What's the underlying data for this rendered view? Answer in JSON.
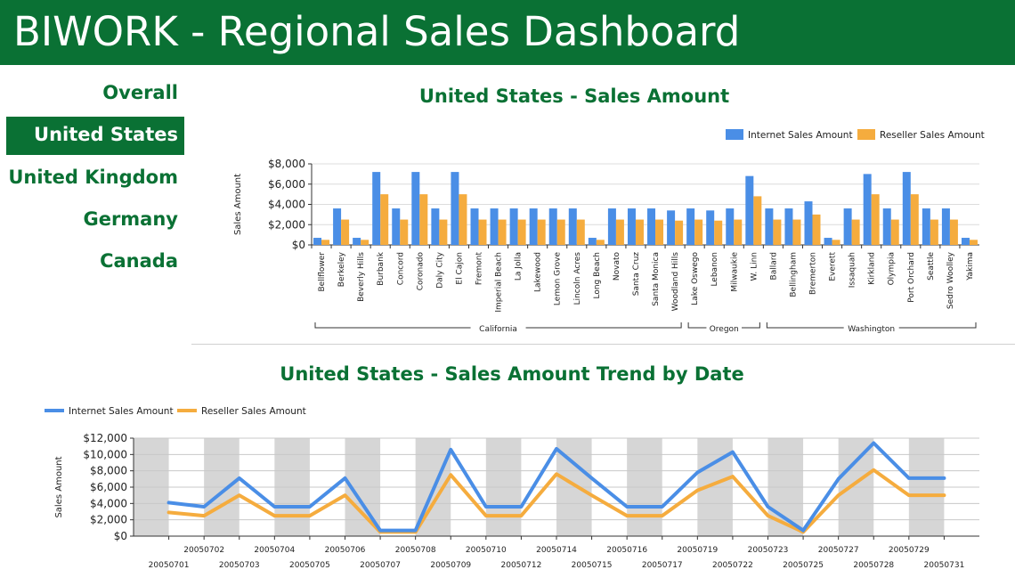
{
  "app": {
    "title": "BIWORK - Regional Sales Dashboard"
  },
  "colors": {
    "brand": "#0a7134",
    "internet": "#4a8ee6",
    "reseller": "#f5ac3e",
    "band": "#d6d6d6"
  },
  "sidebar": {
    "items": [
      {
        "label": "Overall",
        "active": false
      },
      {
        "label": "United States",
        "active": true
      },
      {
        "label": "United Kingdom",
        "active": false
      },
      {
        "label": "Germany",
        "active": false
      },
      {
        "label": "Canada",
        "active": false
      }
    ]
  },
  "chart_data": [
    {
      "type": "bar",
      "title": "United States - Sales Amount",
      "ylabel": "Sales Amount",
      "xlabel": "",
      "ylim": [
        0,
        8000
      ],
      "yticks": [
        "$0",
        "$2,000",
        "$4,000",
        "$6,000",
        "$8,000"
      ],
      "grid": true,
      "legend_position": "top-right",
      "categories": [
        "Bellflower",
        "Berkeley",
        "Beverly Hills",
        "Burbank",
        "Concord",
        "Coronado",
        "Daly City",
        "El Cajon",
        "Fremont",
        "Imperial Beach",
        "La Jolla",
        "Lakewood",
        "Lemon Grove",
        "Lincoln Acres",
        "Long Beach",
        "Novato",
        "Santa Cruz",
        "Santa Monica",
        "Woodland Hills",
        "Lake Oswego",
        "Lebanon",
        "Milwaukie",
        "W. Linn",
        "Ballard",
        "Bellingham",
        "Bremerton",
        "Everett",
        "Issaquah",
        "Kirkland",
        "Olympia",
        "Port Orchard",
        "Seattle",
        "Sedro Woolley",
        "Yakima"
      ],
      "groups": [
        {
          "label": "California",
          "start": 0,
          "end": 18
        },
        {
          "label": "Oregon",
          "start": 19,
          "end": 22
        },
        {
          "label": "Washington",
          "start": 23,
          "end": 33
        }
      ],
      "series": [
        {
          "name": "Internet Sales Amount",
          "values": [
            700,
            3600,
            700,
            7200,
            3600,
            7200,
            3600,
            7200,
            3600,
            3600,
            3600,
            3600,
            3600,
            3600,
            700,
            3600,
            3600,
            3600,
            3400,
            3600,
            3400,
            3600,
            6800,
            3600,
            3600,
            4300,
            700,
            3600,
            7000,
            3600,
            7200,
            3600,
            3600,
            700
          ]
        },
        {
          "name": "Reseller Sales Amount",
          "values": [
            500,
            2500,
            500,
            5000,
            2500,
            5000,
            2500,
            5000,
            2500,
            2500,
            2500,
            2500,
            2500,
            2500,
            500,
            2500,
            2500,
            2500,
            2400,
            2500,
            2400,
            2500,
            4800,
            2500,
            2500,
            3000,
            500,
            2500,
            5000,
            2500,
            5000,
            2500,
            2500,
            500
          ]
        }
      ]
    },
    {
      "type": "line",
      "title": "United States - Sales Amount Trend by Date",
      "ylabel": "Sales Amount",
      "xlabel": "",
      "ylim": [
        0,
        12000
      ],
      "yticks": [
        "$0",
        "$2,000",
        "$4,000",
        "$6,000",
        "$8,000",
        "$10,000",
        "$12,000"
      ],
      "legend_position": "top-left",
      "x": [
        "20050701",
        "20050702",
        "20050703",
        "20050704",
        "20050705",
        "20050706",
        "20050707",
        "20050708",
        "20050709",
        "20050710",
        "20050712",
        "20050714",
        "20050715",
        "20050716",
        "20050717",
        "20050719",
        "20050722",
        "20050723",
        "20050725",
        "20050727",
        "20050728",
        "20050729",
        "20050731"
      ],
      "series": [
        {
          "name": "Internet Sales Amount",
          "values": [
            4100,
            3600,
            7100,
            3600,
            3600,
            7100,
            700,
            700,
            10600,
            3600,
            3600,
            10700,
            7100,
            3600,
            3600,
            7800,
            10300,
            3600,
            700,
            7000,
            11400,
            7100,
            7100
          ]
        },
        {
          "name": "Reseller Sales Amount",
          "values": [
            2900,
            2500,
            5000,
            2500,
            2500,
            5000,
            500,
            500,
            7500,
            2500,
            2500,
            7600,
            5000,
            2500,
            2500,
            5600,
            7300,
            2500,
            500,
            5000,
            8100,
            5000,
            5000
          ]
        }
      ]
    }
  ]
}
